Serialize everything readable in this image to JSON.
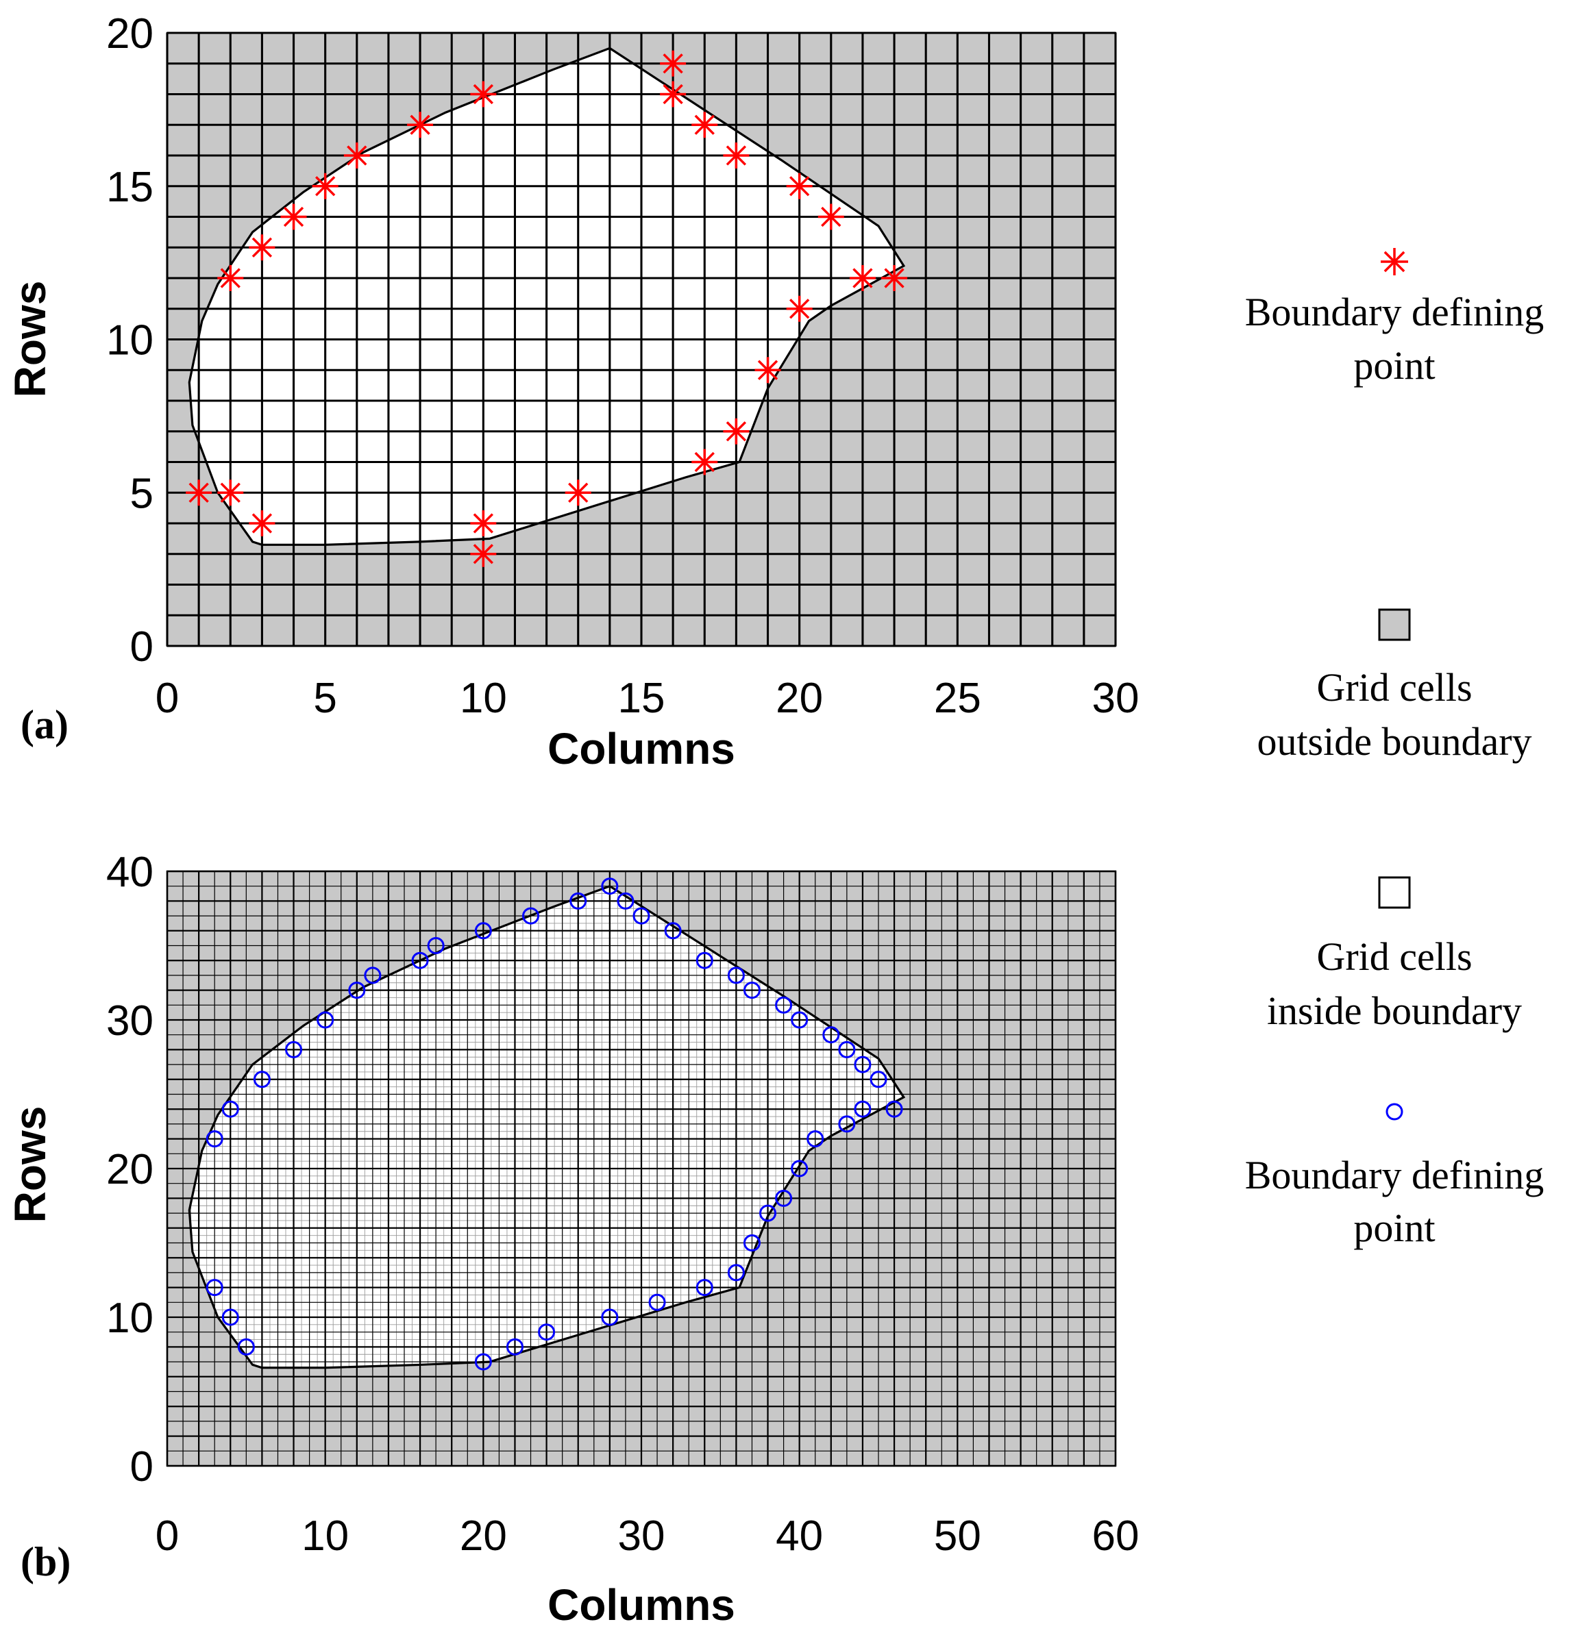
{
  "chart_data": [
    {
      "type": "scatter",
      "panel_label": "(a)",
      "xlabel": "Columns",
      "ylabel": "Rows",
      "xlim": [
        0,
        30
      ],
      "ylim": [
        0,
        20
      ],
      "xticks": [
        "0",
        "5",
        "10",
        "15",
        "20",
        "25",
        "30"
      ],
      "yticks": [
        "0",
        "5",
        "10",
        "15",
        "20"
      ],
      "grid_cell_size": 1,
      "boundary_polygon": [
        [
          14,
          19.5
        ],
        [
          19.5,
          15.8
        ],
        [
          22.5,
          13.7
        ],
        [
          23.3,
          12.4
        ],
        [
          21,
          11.1
        ],
        [
          20.3,
          10.6
        ],
        [
          19,
          8.4
        ],
        [
          18.1,
          6
        ],
        [
          16.4,
          5.5
        ],
        [
          10.2,
          3.5
        ],
        [
          8,
          3.4
        ],
        [
          5,
          3.3
        ],
        [
          3,
          3.3
        ],
        [
          2.7,
          3.4
        ],
        [
          1.6,
          5
        ],
        [
          0.8,
          7.2
        ],
        [
          0.7,
          8.6
        ],
        [
          1.1,
          10.6
        ],
        [
          1.6,
          11.8
        ],
        [
          2.7,
          13.5
        ],
        [
          4.3,
          14.8
        ],
        [
          6.2,
          16.1
        ],
        [
          8.8,
          17.4
        ],
        [
          12.2,
          18.8
        ]
      ],
      "series": [
        {
          "name": "Boundary defining point",
          "marker": "asterisk",
          "color": "#ff0000",
          "points": [
            [
              1,
              5
            ],
            [
              2,
              5
            ],
            [
              3,
              4
            ],
            [
              2,
              12
            ],
            [
              3,
              13
            ],
            [
              4,
              14
            ],
            [
              5,
              15
            ],
            [
              6,
              16
            ],
            [
              8,
              17
            ],
            [
              10,
              18
            ],
            [
              10,
              4
            ],
            [
              10,
              3
            ],
            [
              13,
              5
            ],
            [
              16,
              19
            ],
            [
              16,
              18
            ],
            [
              17,
              17
            ],
            [
              18,
              16
            ],
            [
              20,
              15
            ],
            [
              21,
              14
            ],
            [
              22,
              12
            ],
            [
              23,
              12
            ],
            [
              20,
              11
            ],
            [
              19,
              9
            ],
            [
              18,
              7
            ],
            [
              17,
              6
            ]
          ]
        }
      ],
      "legend": [
        {
          "marker": "asterisk",
          "color": "#ff0000",
          "line1": "Boundary defining",
          "line2": "point"
        },
        {
          "marker": "grey-square",
          "color": "#c8c8c8",
          "line1": "Grid cells",
          "line2": "outside boundary"
        }
      ]
    },
    {
      "type": "scatter",
      "panel_label": "(b)",
      "xlabel": "Columns",
      "ylabel": "Rows",
      "xlim": [
        0,
        60
      ],
      "ylim": [
        0,
        40
      ],
      "xticks": [
        "0",
        "10",
        "20",
        "30",
        "40",
        "50",
        "60"
      ],
      "yticks": [
        "0",
        "10",
        "20",
        "30",
        "40"
      ],
      "grid_cell_size": 1,
      "boundary_polygon": [
        [
          28,
          39
        ],
        [
          39,
          31.6
        ],
        [
          45,
          27.4
        ],
        [
          46.6,
          24.8
        ],
        [
          42,
          22.2
        ],
        [
          40.6,
          21.2
        ],
        [
          38,
          16.8
        ],
        [
          36.2,
          12
        ],
        [
          32.8,
          11
        ],
        [
          20.4,
          7
        ],
        [
          16,
          6.8
        ],
        [
          10,
          6.6
        ],
        [
          6,
          6.6
        ],
        [
          5.4,
          6.8
        ],
        [
          3.2,
          10
        ],
        [
          1.6,
          14.4
        ],
        [
          1.4,
          17.2
        ],
        [
          2.2,
          21.2
        ],
        [
          3.2,
          23.6
        ],
        [
          5.4,
          27
        ],
        [
          8.6,
          29.6
        ],
        [
          12.4,
          32.2
        ],
        [
          17.6,
          34.8
        ],
        [
          24.4,
          37.6
        ]
      ],
      "series": [
        {
          "name": "Boundary defining point",
          "marker": "circle",
          "color": "#0000ff",
          "points": [
            [
              3,
              22
            ],
            [
              4,
              24
            ],
            [
              6,
              26
            ],
            [
              8,
              28
            ],
            [
              10,
              30
            ],
            [
              12,
              32
            ],
            [
              13,
              33
            ],
            [
              16,
              34
            ],
            [
              17,
              35
            ],
            [
              20,
              36
            ],
            [
              23,
              37
            ],
            [
              26,
              38
            ],
            [
              28,
              39
            ],
            [
              29,
              38
            ],
            [
              30,
              37
            ],
            [
              32,
              36
            ],
            [
              34,
              34
            ],
            [
              36,
              33
            ],
            [
              37,
              32
            ],
            [
              39,
              31
            ],
            [
              40,
              30
            ],
            [
              42,
              29
            ],
            [
              43,
              28
            ],
            [
              44,
              27
            ],
            [
              45,
              26
            ],
            [
              46,
              24
            ],
            [
              44,
              24
            ],
            [
              43,
              23
            ],
            [
              41,
              22
            ],
            [
              40,
              20
            ],
            [
              39,
              18
            ],
            [
              38,
              17
            ],
            [
              37,
              15
            ],
            [
              36,
              13
            ],
            [
              34,
              12
            ],
            [
              31,
              11
            ],
            [
              28,
              10
            ],
            [
              24,
              9
            ],
            [
              22,
              8
            ],
            [
              20,
              7
            ],
            [
              5,
              8
            ],
            [
              4,
              10
            ],
            [
              3,
              12
            ]
          ]
        }
      ],
      "legend": [
        {
          "marker": "white-square",
          "color": "#ffffff",
          "line1": "Grid cells",
          "line2": "inside boundary"
        },
        {
          "marker": "circle",
          "color": "#0000ff",
          "line1": "Boundary defining",
          "line2": "point"
        }
      ]
    }
  ]
}
